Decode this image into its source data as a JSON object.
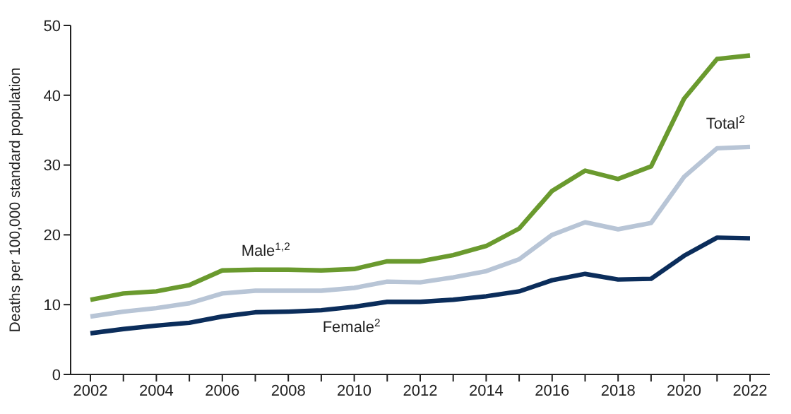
{
  "chart_data": {
    "type": "line",
    "ylabel": "Deaths per 100,000 standard population",
    "x": [
      2002,
      2003,
      2004,
      2005,
      2006,
      2007,
      2008,
      2009,
      2010,
      2011,
      2012,
      2013,
      2014,
      2015,
      2016,
      2017,
      2018,
      2019,
      2020,
      2021,
      2022
    ],
    "series": [
      {
        "name": "Male$^{1,2}$",
        "color": "#6a9a2e",
        "values": [
          10.7,
          11.6,
          11.9,
          12.8,
          14.9,
          15.0,
          15.0,
          14.9,
          15.1,
          16.2,
          16.2,
          17.1,
          18.4,
          20.9,
          26.3,
          29.2,
          28.0,
          29.8,
          39.5,
          45.2,
          45.7
        ]
      },
      {
        "name": "Total$^{2}$",
        "color": "#b8c5d6",
        "values": [
          8.3,
          9.0,
          9.5,
          10.2,
          11.6,
          12.0,
          12.0,
          12.0,
          12.4,
          13.3,
          13.2,
          13.9,
          14.8,
          16.5,
          20.0,
          21.8,
          20.8,
          21.7,
          28.3,
          32.4,
          32.6
        ]
      },
      {
        "name": "Female$^{2}$",
        "color": "#0b2d5b",
        "values": [
          5.9,
          6.5,
          7.0,
          7.4,
          8.3,
          8.9,
          9.0,
          9.2,
          9.7,
          10.4,
          10.4,
          10.7,
          11.2,
          11.9,
          13.5,
          14.4,
          13.6,
          13.7,
          17.0,
          19.6,
          19.5
        ]
      }
    ],
    "xlim": [
      2001.4,
      2022.6
    ],
    "xticks": [
      2002,
      {
        "value": 2003,
        "label": null
      },
      2004,
      {
        "value": 2005,
        "label": null
      },
      2006,
      {
        "value": 2007,
        "label": null
      },
      2008,
      {
        "value": 2009,
        "label": null
      },
      2010,
      {
        "value": 2011,
        "label": null
      },
      2012,
      {
        "value": 2013,
        "label": null
      },
      2014,
      {
        "value": 2015,
        "label": null
      },
      2016,
      {
        "value": 2017,
        "label": null
      },
      2018,
      {
        "value": 2019,
        "label": null
      },
      2020,
      {
        "value": 2021,
        "label": null
      },
      2022
    ],
    "ylim": [
      0,
      50
    ],
    "yticks": [
      0,
      10,
      20,
      30,
      40,
      50
    ],
    "grid": false,
    "legend": false,
    "marker": "none",
    "line_style": "solid"
  }
}
